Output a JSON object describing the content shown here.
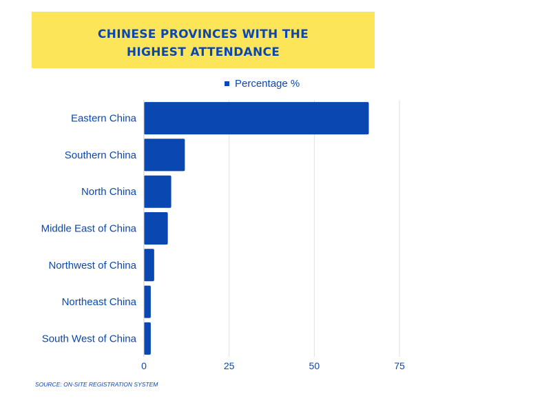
{
  "title": "CHINESE PROVINCES WITH THE HIGHEST ATTENDANCE",
  "source": "SOURCE: ON-SITE REGISTRATION SYSTEM",
  "colors": {
    "bar": "#0a47b0",
    "banner": "#fde55a",
    "text": "#0a47b0",
    "grid": "#e0e0e0"
  },
  "chart_data": {
    "type": "bar",
    "orientation": "horizontal",
    "categories": [
      "Eastern China",
      "Southern China",
      "North China",
      "Middle East of China",
      "Northwest of China",
      "Northeast China",
      "South West of China"
    ],
    "series": [
      {
        "name": "Percentage %",
        "values": [
          66,
          12,
          8,
          7,
          3,
          2,
          2
        ]
      }
    ],
    "xlim": [
      0,
      75
    ],
    "xticks": [
      "0",
      "25",
      "50",
      "75"
    ],
    "grid": true,
    "legend_position": "top"
  }
}
